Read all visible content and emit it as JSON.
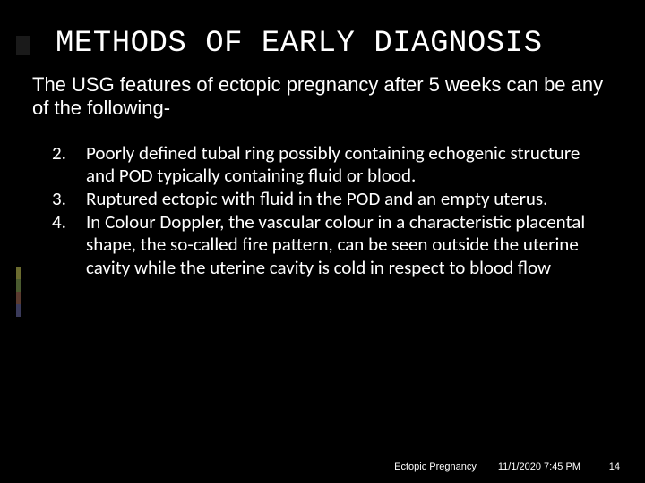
{
  "background_color": "#000000",
  "text_color": "#ffffff",
  "title": {
    "text": "METHODS OF EARLY DIAGNOSIS",
    "font_family": "Consolas, monospace",
    "font_size_pt": 26,
    "color": "#ffffff"
  },
  "intro": {
    "text": "The USG features of ectopic pregnancy after 5 weeks can be any of the following-",
    "font_family": "Arial, sans-serif",
    "font_size_pt": 17,
    "color": "#ffffff"
  },
  "list": {
    "start_number": 2,
    "font_family": "Segoe UI, Calibri, sans-serif",
    "font_size_pt": 16,
    "color": "#ffffff",
    "items": [
      {
        "num": "2.",
        "text": "Poorly defined tubal ring possibly containing echogenic structure and POD typically containing fluid or blood."
      },
      {
        "num": "3.",
        "text": "Ruptured ectopic with fluid in the POD and an empty uterus."
      },
      {
        "num": "4.",
        "text": "In Colour Doppler, the vascular colour in a characteristic placental shape, the so-called fire pattern, can be seen outside the uterine cavity while the uterine cavity is cold in respect to blood flow"
      }
    ]
  },
  "accent_stack_colors": [
    "#6b6b2f",
    "#4a5a2f",
    "#5a3a2f",
    "#3a3a5a"
  ],
  "footer": {
    "subject": "Ectopic Pregnancy",
    "datetime": "11/1/2020 7:45 PM",
    "page_number": "14",
    "font_size_pt": 8,
    "color": "#ffffff"
  }
}
